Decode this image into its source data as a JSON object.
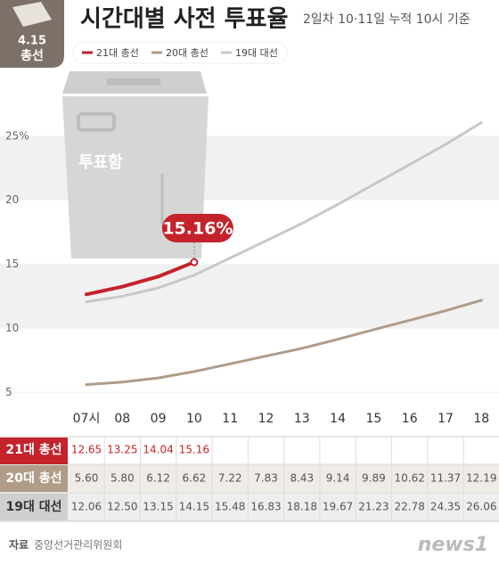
{
  "chart_data": {
    "type": "line",
    "title": "시간대별 사전 투표율",
    "subtitle": "2일차 10·11일 누적 10시 기준",
    "badge": [
      "4.15",
      "총선"
    ],
    "illustration_label": "투표함",
    "annotation": "15.16%",
    "categories": [
      "07시",
      "08",
      "09",
      "10",
      "11",
      "12",
      "13",
      "14",
      "15",
      "16",
      "17",
      "18"
    ],
    "series": [
      {
        "name": "21대 총선",
        "color": "#c4232b",
        "values": [
          12.65,
          13.25,
          14.04,
          15.16,
          null,
          null,
          null,
          null,
          null,
          null,
          null,
          null
        ],
        "value_labels": [
          "12.65",
          "13.25",
          "14.04",
          "15.16",
          null,
          null,
          null,
          null,
          null,
          null,
          null,
          null
        ]
      },
      {
        "name": "20대 총선",
        "color": "#b09c89",
        "values": [
          5.6,
          5.8,
          6.12,
          6.62,
          7.22,
          7.83,
          8.43,
          9.14,
          9.89,
          10.62,
          11.37,
          12.19
        ],
        "value_labels": [
          "5.60",
          "5.80",
          "6.12",
          "6.62",
          "7.22",
          "7.83",
          "8.43",
          "9.14",
          "9.89",
          "10.62",
          "11.37",
          "12.19"
        ]
      },
      {
        "name": "19대 대선",
        "color": "#c8c8c8",
        "values": [
          12.06,
          12.5,
          13.15,
          14.15,
          15.48,
          16.83,
          18.18,
          19.67,
          21.23,
          22.78,
          24.35,
          26.06
        ],
        "value_labels": [
          "12.06",
          "12.50",
          "13.15",
          "14.15",
          "15.48",
          "16.83",
          "18.18",
          "19.67",
          "21.23",
          "22.78",
          "24.35",
          "26.06"
        ]
      }
    ],
    "ylim": [
      3,
      27
    ],
    "yticks": [
      5,
      10,
      15,
      20,
      {
        "value": 25,
        "label": "25%"
      }
    ],
    "grid": true,
    "source_label": "자료",
    "source": "중앙선거관리위원회",
    "logo": "news1"
  }
}
